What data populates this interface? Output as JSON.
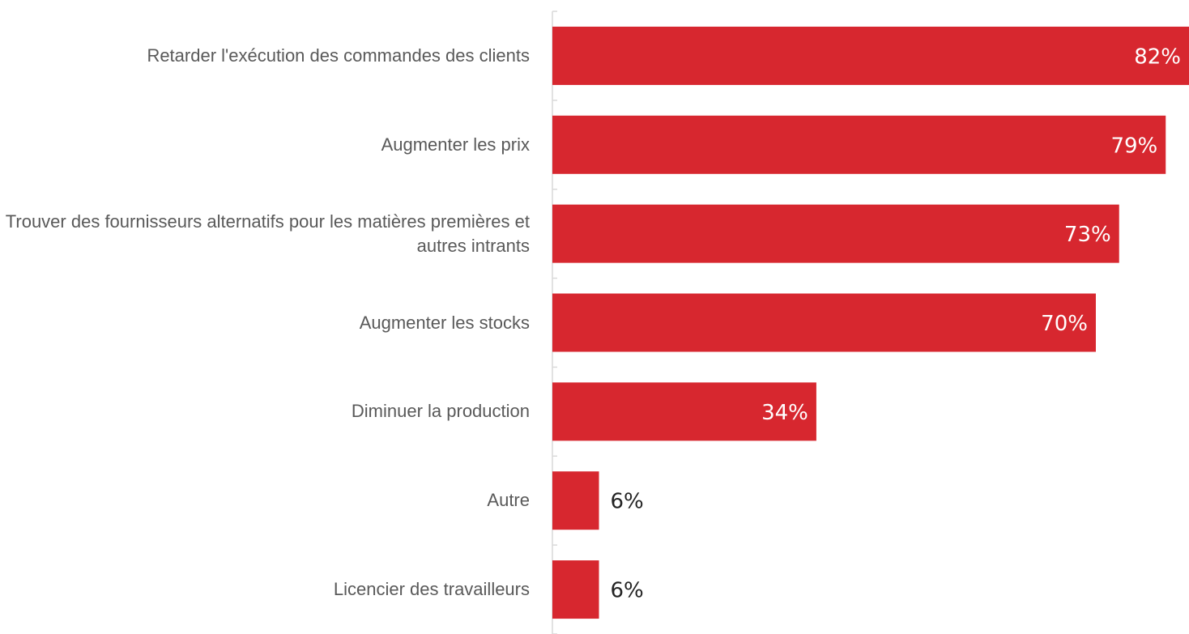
{
  "chart_data": {
    "type": "bar",
    "orientation": "horizontal",
    "categories": [
      "Retarder l'exécution des commandes des clients",
      "Augmenter les prix",
      "Trouver des fournisseurs alternatifs pour les matières premières et autres intrants",
      "Augmenter les stocks",
      "Diminuer la production",
      "Autre",
      "Licencier des travailleurs"
    ],
    "values": [
      82,
      79,
      73,
      70,
      34,
      6,
      6
    ],
    "value_labels": [
      "82%",
      "79%",
      "73%",
      "70%",
      "34%",
      "6%",
      "6%"
    ],
    "color": "#d7272f",
    "xlim": [
      0,
      82
    ]
  }
}
